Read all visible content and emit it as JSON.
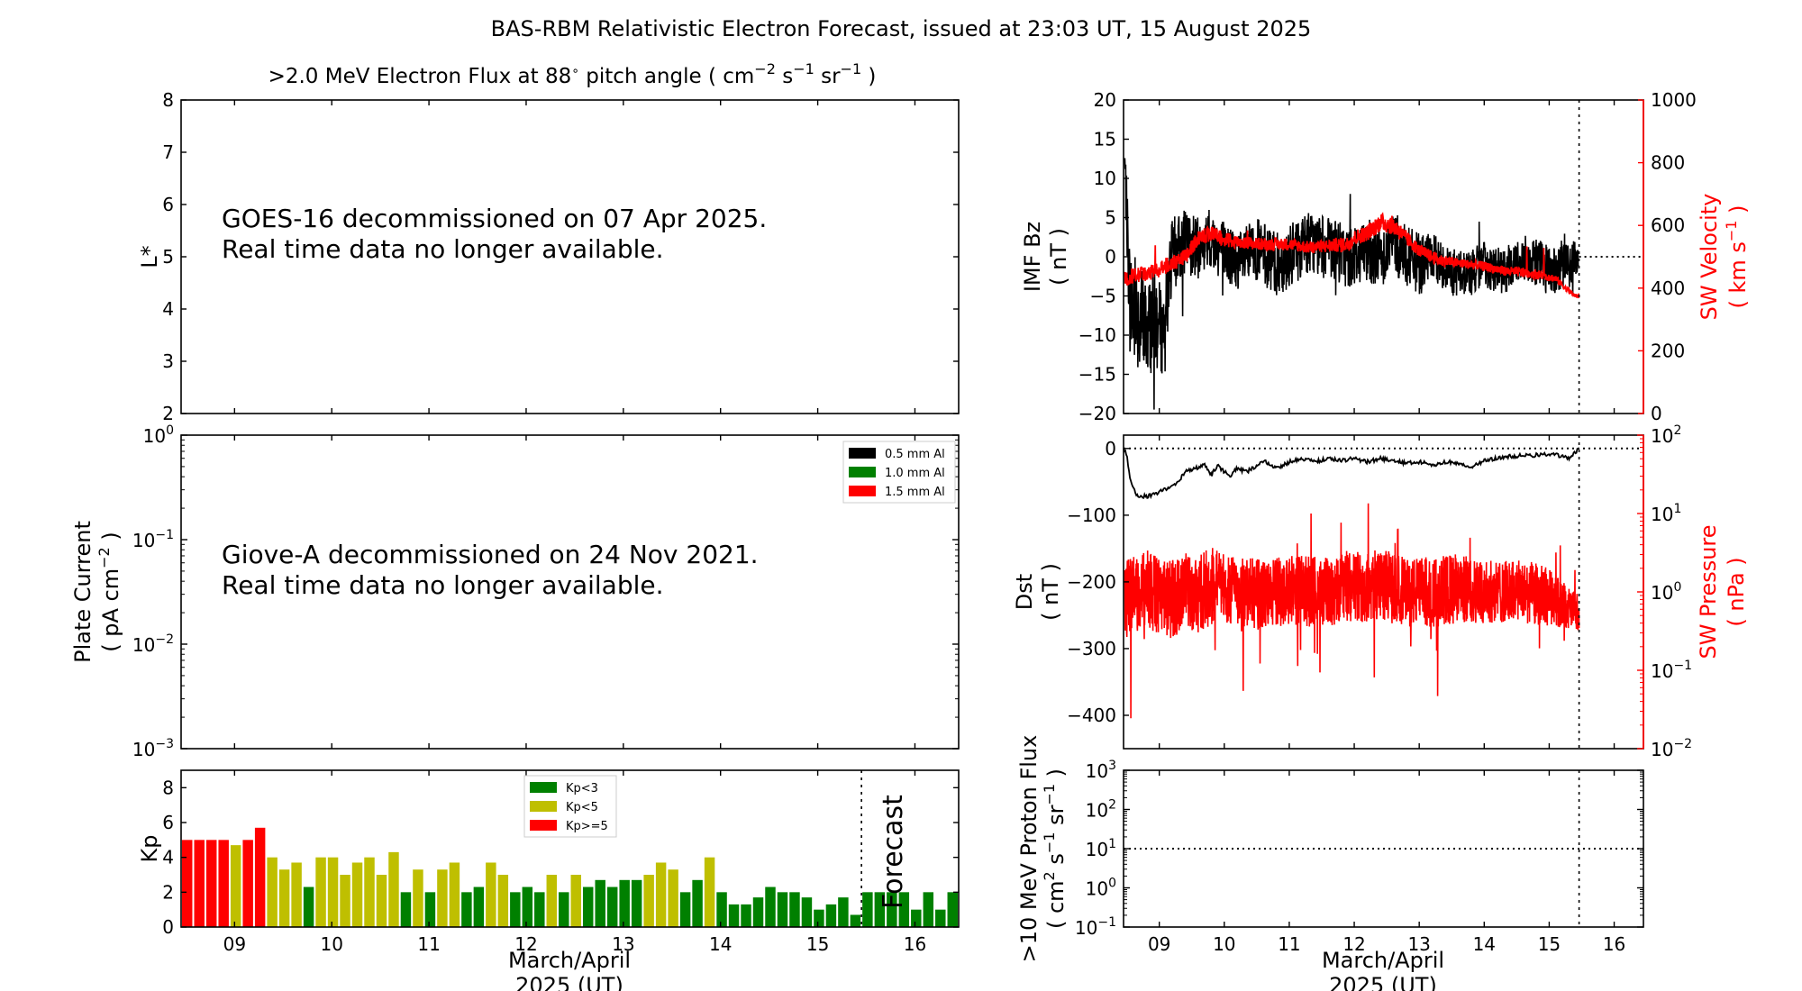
{
  "figure": {
    "title": "BAS-RBM Relativistic Electron Forecast, issued at 23:03 UT, 15 August 2025",
    "xlabel_line1": "March/April",
    "xlabel_line2": "2025 (UT)"
  },
  "colors": {
    "black": "#000000",
    "red": "#ff0000",
    "green": "#008000",
    "olive": "#bfbf00",
    "grey": "#c0c0c0"
  },
  "chart_data": [
    {
      "id": "electron-flux",
      "type": "heatmap",
      "title_pre": ">2.0 MeV Electron Flux at 88",
      "title_deg": "∘",
      "title_mid": " pitch angle ( cm",
      "title_sup1": "−2",
      "title_s": " s",
      "title_sup2": "−1",
      "title_sr": " sr",
      "title_sup3": "−1",
      "title_end": " )",
      "ylabel": "L*",
      "ylim": [
        2,
        8
      ],
      "yticks": [
        "2",
        "3",
        "4",
        "5",
        "6",
        "7",
        "8"
      ],
      "notice_line1": "GOES-16 decommissioned on 07 Apr 2025.",
      "notice_line2": "Real time data no longer available."
    },
    {
      "id": "plate-current",
      "type": "line",
      "ylabel_line1": "Plate Current",
      "ylabel_line2_pre": "( pA cm",
      "ylabel_sup": "−2",
      "ylabel_line2_post": " )",
      "yscale": "log",
      "ylim": [
        0.001,
        1
      ],
      "yticks": [
        {
          "base": "10",
          "exp": "0"
        },
        {
          "base": "10",
          "exp": "−1"
        },
        {
          "base": "10",
          "exp": "−2"
        },
        {
          "base": "10",
          "exp": "−3"
        }
      ],
      "legend": [
        {
          "label": "0.5 mm Al",
          "color": "#000000"
        },
        {
          "label": "1.0 mm Al",
          "color": "#008000"
        },
        {
          "label": "1.5 mm Al",
          "color": "#ff0000"
        }
      ],
      "legend_position": "top-right",
      "notice_line1": "Giove-A decommissioned on 24 Nov 2021.",
      "notice_line2": "Real time data no longer available."
    },
    {
      "id": "kp",
      "type": "bar",
      "ylabel": "Kp",
      "ylim": [
        0,
        9
      ],
      "yticks": [
        "0",
        "2",
        "4",
        "6",
        "8"
      ],
      "xlim": [
        8.45,
        16.45
      ],
      "xticks": [
        "09",
        "10",
        "11",
        "12",
        "13",
        "14",
        "15",
        "16"
      ],
      "forecast_start": 15.45,
      "forecast_label": "Forecast",
      "legend": [
        {
          "label": "Kp<3",
          "color": "#008000"
        },
        {
          "label": "Kp<5",
          "color": "#bfbf00"
        },
        {
          "label": "Kp>=5",
          "color": "#ff0000"
        }
      ],
      "legend_position": "top-center",
      "values": [
        5.0,
        5.0,
        5.0,
        5.0,
        4.7,
        5.0,
        5.7,
        4.0,
        3.3,
        3.7,
        2.3,
        4.0,
        4.0,
        3.0,
        3.7,
        4.0,
        3.0,
        4.3,
        2.0,
        3.3,
        2.0,
        3.3,
        3.7,
        2.0,
        2.3,
        3.7,
        3.0,
        2.0,
        2.3,
        2.0,
        3.0,
        2.0,
        3.0,
        2.3,
        2.7,
        2.3,
        2.7,
        2.7,
        3.0,
        3.7,
        3.3,
        2.0,
        2.7,
        4.0,
        2.0,
        1.3,
        1.3,
        1.7,
        2.3,
        2.0,
        2.0,
        1.7,
        1.0,
        1.3,
        1.7,
        0.7,
        2.0,
        2.0,
        2.0,
        2.0,
        1.0,
        2.0,
        1.0,
        2.0
      ]
    },
    {
      "id": "imf-sw-velocity",
      "type": "line",
      "ylabel_line1": "IMF Bz",
      "ylabel_line2": "( nT )",
      "ylim": [
        -20,
        20
      ],
      "yticks": [
        "20",
        "15",
        "10",
        "5",
        "0",
        "−5",
        "−10",
        "−15",
        "−20"
      ],
      "y2label_line1": "SW Velocity",
      "y2label_line2_pre": "( km s",
      "y2label_sup": "−1",
      "y2label_line2_post": " )",
      "y2lim": [
        0,
        1000
      ],
      "y2ticks": [
        "1000",
        "800",
        "600",
        "400",
        "200",
        "0"
      ],
      "xlim": [
        8.45,
        16.45
      ],
      "xticks": [
        "09",
        "10",
        "11",
        "12",
        "13",
        "14",
        "15",
        "16"
      ],
      "now": 15.46,
      "series": [
        {
          "key": "bz",
          "axis": "left",
          "color": "#000000",
          "x": [
            8.47,
            8.55,
            8.65,
            8.8,
            8.95,
            9.05,
            9.2,
            9.4,
            9.6,
            9.8,
            10.0,
            10.2,
            10.5,
            10.8,
            11.0,
            11.3,
            11.6,
            11.9,
            12.2,
            12.4,
            12.6,
            12.8,
            13.0,
            13.2,
            13.5,
            13.8,
            14.0,
            14.3,
            14.6,
            14.9,
            15.1,
            15.3,
            15.45
          ],
          "y": [
            12,
            -6,
            -7,
            -9,
            -8,
            -10,
            0,
            2,
            1,
            2,
            1,
            -1,
            1,
            -1,
            0,
            2,
            1,
            0,
            1,
            0,
            2,
            0,
            -1,
            0,
            -2,
            -2,
            -1,
            -2,
            0,
            -1,
            -2,
            -1,
            0
          ],
          "amp": [
            3,
            7,
            8,
            6,
            7,
            5,
            5,
            4,
            4,
            4,
            4,
            4,
            4,
            4,
            4,
            4,
            4,
            4,
            4,
            4,
            4,
            4,
            4,
            3,
            3,
            3,
            3,
            3,
            3,
            3,
            3,
            3,
            2
          ]
        },
        {
          "key": "vsw",
          "axis": "right",
          "color": "#ff0000",
          "x": [
            8.47,
            8.6,
            8.8,
            9.0,
            9.2,
            9.4,
            9.6,
            9.8,
            10.0,
            10.3,
            10.6,
            11.0,
            11.3,
            11.6,
            11.9,
            12.0,
            12.2,
            12.4,
            12.6,
            12.8,
            13.0,
            13.3,
            13.6,
            14.0,
            14.3,
            14.6,
            14.9,
            15.1,
            15.25,
            15.4,
            15.46
          ],
          "y": [
            430,
            440,
            445,
            460,
            480,
            500,
            560,
            575,
            555,
            545,
            540,
            540,
            530,
            535,
            540,
            560,
            575,
            610,
            600,
            560,
            520,
            490,
            480,
            470,
            455,
            450,
            440,
            430,
            400,
            375,
            375
          ],
          "amp": [
            25,
            25,
            25,
            25,
            25,
            25,
            25,
            25,
            25,
            20,
            20,
            20,
            20,
            20,
            25,
            25,
            25,
            30,
            30,
            25,
            20,
            20,
            15,
            15,
            15,
            15,
            15,
            12,
            10,
            8,
            8
          ]
        }
      ]
    },
    {
      "id": "dst-sw-pressure",
      "type": "line",
      "ylabel_line1": "Dst",
      "ylabel_line2": "( nT )",
      "ylim": [
        -450,
        20
      ],
      "yticks": [
        "0",
        "−100",
        "−200",
        "−300",
        "−400"
      ],
      "y2label_line1": "SW Pressure",
      "y2label_line2": "( nPa )",
      "y2scale": "log",
      "y2lim": [
        0.01,
        100
      ],
      "y2ticks": [
        {
          "base": "10",
          "exp": "2"
        },
        {
          "base": "10",
          "exp": "1"
        },
        {
          "base": "10",
          "exp": "0"
        },
        {
          "base": "10",
          "exp": "−1"
        },
        {
          "base": "10",
          "exp": "−2"
        }
      ],
      "xlim": [
        8.45,
        16.45
      ],
      "xticks": [
        "09",
        "10",
        "11",
        "12",
        "13",
        "14",
        "15",
        "16"
      ],
      "now": 15.46,
      "series": [
        {
          "key": "dst",
          "axis": "left",
          "color": "#000000",
          "x": [
            8.45,
            8.5,
            8.55,
            8.65,
            8.8,
            8.95,
            9.1,
            9.25,
            9.4,
            9.55,
            9.7,
            9.8,
            9.9,
            10.0,
            10.1,
            10.2,
            10.35,
            10.5,
            10.65,
            10.8,
            11.0,
            11.2,
            11.4,
            11.6,
            11.8,
            12.0,
            12.2,
            12.4,
            12.6,
            12.8,
            13.0,
            13.2,
            13.4,
            13.6,
            13.8,
            14.0,
            14.2,
            14.4,
            14.6,
            14.8,
            15.0,
            15.2,
            15.3,
            15.46
          ],
          "y": [
            0,
            -10,
            -45,
            -70,
            -72,
            -68,
            -60,
            -55,
            -35,
            -30,
            -25,
            -40,
            -25,
            -35,
            -40,
            -30,
            -35,
            -25,
            -20,
            -30,
            -20,
            -15,
            -20,
            -15,
            -18,
            -15,
            -20,
            -15,
            -18,
            -22,
            -20,
            -25,
            -20,
            -22,
            -28,
            -18,
            -15,
            -12,
            -10,
            -10,
            -8,
            -12,
            -15,
            0
          ]
        },
        {
          "key": "psw",
          "axis": "right",
          "color": "#ff0000",
          "x": [
            8.47,
            8.6,
            8.8,
            9.0,
            9.2,
            9.4,
            9.6,
            9.8,
            10.0,
            10.3,
            10.6,
            11.0,
            11.3,
            11.6,
            11.9,
            12.2,
            12.4,
            12.6,
            12.8,
            13.0,
            13.3,
            13.6,
            14.0,
            14.3,
            14.6,
            14.9,
            15.2,
            15.46
          ],
          "y": [
            0.8,
            0.9,
            1.1,
            0.9,
            0.8,
            1.0,
            0.9,
            1.2,
            1.1,
            1.0,
            0.9,
            1.1,
            1.0,
            1.0,
            1.2,
            1.1,
            1.3,
            1.1,
            1.0,
            1.0,
            1.0,
            1.1,
            1.0,
            1.0,
            1.0,
            0.9,
            0.7,
            0.5
          ],
          "amp": [
            0.5,
            0.5,
            0.5,
            0.5,
            0.5,
            0.5,
            0.5,
            0.5,
            0.45,
            0.45,
            0.45,
            0.45,
            0.45,
            0.45,
            0.45,
            0.45,
            0.45,
            0.45,
            0.45,
            0.45,
            0.45,
            0.45,
            0.4,
            0.4,
            0.4,
            0.4,
            0.3,
            0.25
          ]
        }
      ]
    },
    {
      "id": "proton-flux",
      "type": "line",
      "ylabel_line1": ">10 MeV Proton Flux",
      "ylabel_line2_pre": "( cm",
      "ylabel_sup1": "2",
      "ylabel_mid": " s",
      "ylabel_sup2": "−1",
      "ylabel_sr": " sr",
      "ylabel_sup3": "−1",
      "ylabel_line2_post": " )",
      "yscale": "log",
      "ylim": [
        0.1,
        1000
      ],
      "yticks": [
        {
          "base": "10",
          "exp": "3"
        },
        {
          "base": "10",
          "exp": "2"
        },
        {
          "base": "10",
          "exp": "1"
        },
        {
          "base": "10",
          "exp": "0"
        },
        {
          "base": "10",
          "exp": "−1"
        }
      ],
      "threshold": 10,
      "xlim": [
        8.45,
        16.45
      ],
      "xticks": [
        "09",
        "10",
        "11",
        "12",
        "13",
        "14",
        "15",
        "16"
      ],
      "now": 15.46
    }
  ]
}
